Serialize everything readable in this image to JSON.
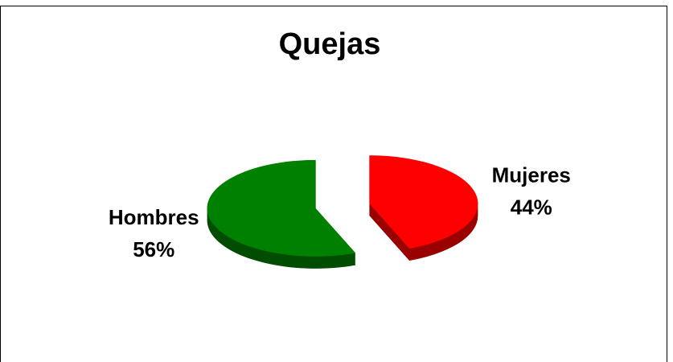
{
  "chart_data": {
    "type": "pie",
    "title": "Quejas",
    "categories": [
      "Mujeres",
      "Hombres"
    ],
    "values": [
      44,
      56
    ],
    "value_labels": [
      "44%",
      "56%"
    ],
    "colors": [
      "#ff0000",
      "#008000"
    ],
    "side_colors": [
      "#990000",
      "#004c00"
    ]
  }
}
